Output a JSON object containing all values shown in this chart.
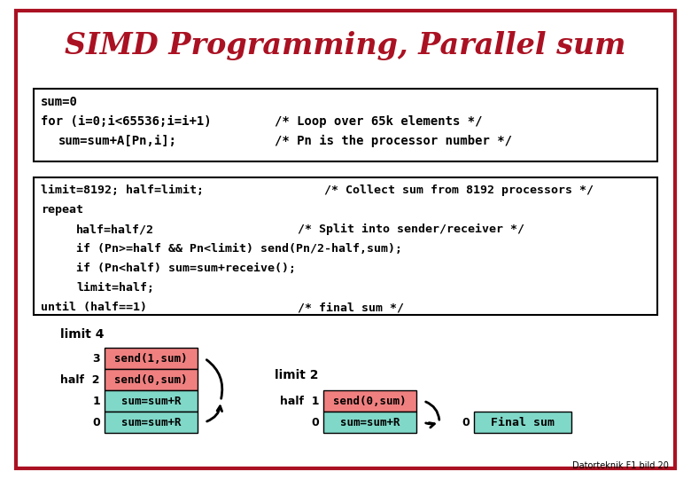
{
  "title": "SIMD Programming, Parallel sum",
  "title_color": "#aa1122",
  "bg_color": "#ffffff",
  "border_color": "#aa1122",
  "footer": "Datorteknik F1 bild 20",
  "red_color": "#f08080",
  "green_color": "#80d8c8",
  "box1_code": [
    [
      "sum=0",
      "",
      "",
      ""
    ],
    [
      "for (i=0;i<65536;i=i+1)",
      "        ",
      "/* Loop over 65k elements */",
      ""
    ],
    [
      "        sum=sum+A[Pn,i];",
      "        ",
      "/* Pn is the processor number */",
      ""
    ]
  ],
  "box2_code": [
    [
      "limit=8192; half=limit;",
      "   ",
      "/* Collect sum from 8192 processors */"
    ],
    [
      "repeat",
      "",
      ""
    ],
    [
      "        half=half/2",
      "              ",
      "/* Split into sender/receiver */"
    ],
    [
      "        if (Pn>=half && Pn<limit) send(Pn/2-half,sum);",
      "",
      ""
    ],
    [
      "        if (Pn<half) sum=sum+receive();",
      "",
      ""
    ],
    [
      "        limit=half;",
      "",
      ""
    ],
    [
      "until (half==1)",
      "              ",
      "/* final sum */"
    ]
  ]
}
